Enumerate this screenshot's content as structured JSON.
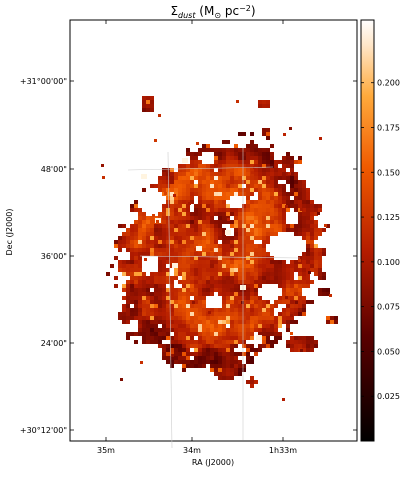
{
  "chart_data": {
    "type": "heatmap",
    "title_main": "Σ",
    "title_sub": "dust",
    "title_rest": " (M",
    "title_sun": "⊙",
    "title_unit": " pc",
    "title_exp": "−2",
    "title_close": ")",
    "xlabel": "RA (J2000)",
    "ylabel": "Dec (J2000)",
    "x_ticks": [
      "35m",
      "34m",
      "1h33m"
    ],
    "y_ticks": [
      "+31°00'00\"",
      "48'00\"",
      "36'00\"",
      "24'00\"",
      "+30°12'00\""
    ],
    "colorbar": {
      "range": [
        0.0,
        0.235
      ],
      "ticks": [
        "0.025",
        "0.050",
        "0.075",
        "0.100",
        "0.125",
        "0.150",
        "0.175",
        "0.200"
      ],
      "tick_values": [
        0.025,
        0.05,
        0.075,
        0.1,
        0.125,
        0.15,
        0.175,
        0.2
      ],
      "colormap": "gist_heat",
      "stops": [
        "#000000",
        "#5a0000",
        "#b41c00",
        "#f05a00",
        "#ffaa3c",
        "#ffe6c8",
        "#ffffff"
      ]
    },
    "grid": true
  }
}
